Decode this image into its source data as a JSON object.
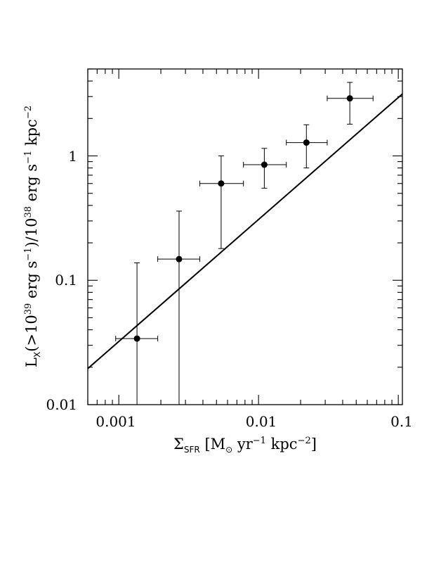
{
  "chart_data": {
    "type": "scatter",
    "x_scale": "log",
    "y_scale": "log",
    "xlim": [
      0.0006,
      0.107
    ],
    "ylim": [
      0.01,
      5.0
    ],
    "x_tick_labels": [
      {
        "value": 0.001,
        "label": "0.001"
      },
      {
        "value": 0.01,
        "label": "0.01"
      },
      {
        "value": 0.1,
        "label": "0.1"
      }
    ],
    "y_tick_labels": [
      {
        "value": 0.01,
        "label": "0.01"
      },
      {
        "value": 0.1,
        "label": "0.1"
      },
      {
        "value": 1,
        "label": "1"
      }
    ],
    "xlabel": {
      "sigma": "Σ",
      "sub": "SFR",
      "open": " [M",
      "sun": "⊙",
      "yr": " yr",
      "exp1": "−1",
      "kpc": " kpc",
      "exp2": "−2",
      "close": "]"
    },
    "ylabel": {
      "L": "L",
      "sub": "X",
      "p1": "(>10",
      "e1": "39",
      "p2": " erg s",
      "e2": "−1",
      "p3": ")/10",
      "e3": "38",
      "p4": " erg s",
      "e4": "−1",
      "p5": " kpc",
      "e5": "−2"
    },
    "points": [
      {
        "x": 0.00135,
        "y": 0.034,
        "xerr": [
          0.00095,
          0.0019
        ],
        "yerr": [
          0.01,
          0.138
        ]
      },
      {
        "x": 0.0027,
        "y": 0.148,
        "xerr": [
          0.0019,
          0.0038
        ],
        "yerr": [
          0.01,
          0.36
        ]
      },
      {
        "x": 0.0054,
        "y": 0.6,
        "xerr": [
          0.0038,
          0.0078
        ],
        "yerr": [
          0.18,
          1.0
        ]
      },
      {
        "x": 0.011,
        "y": 0.85,
        "xerr": [
          0.0078,
          0.0158
        ],
        "yerr": [
          0.55,
          1.15
        ]
      },
      {
        "x": 0.022,
        "y": 1.28,
        "xerr": [
          0.0158,
          0.031
        ],
        "yerr": [
          0.8,
          1.78
        ]
      },
      {
        "x": 0.045,
        "y": 2.9,
        "xerr": [
          0.031,
          0.066
        ],
        "yerr": [
          1.8,
          3.9
        ]
      }
    ],
    "fit_line": {
      "x": [
        0.0006,
        0.107
      ],
      "y": [
        0.0195,
        3.15
      ]
    }
  }
}
